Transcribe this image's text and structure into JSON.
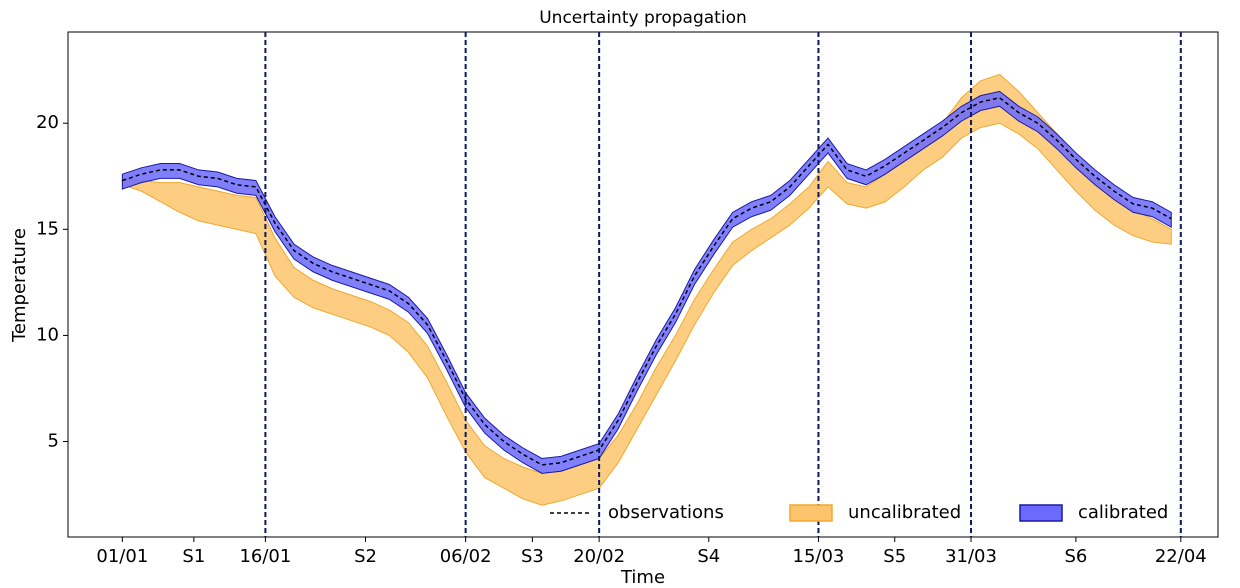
{
  "chart_data": {
    "type": "band-line",
    "title": "Uncertainty propagation",
    "xlabel": "Time",
    "ylabel": "Temperature",
    "x": [
      0,
      2,
      4,
      6,
      8,
      10,
      12,
      14,
      16,
      18,
      20,
      22,
      24,
      26,
      28,
      30,
      32,
      34,
      36,
      38,
      40,
      42,
      44,
      46,
      48,
      50,
      52,
      54,
      56,
      58,
      60,
      62,
      64,
      66,
      68,
      70,
      72,
      74,
      76,
      78,
      80,
      82,
      84,
      86,
      88,
      90,
      92,
      94,
      96,
      98,
      100,
      102,
      104,
      106,
      108,
      110
    ],
    "xlim": [
      -5.7,
      114.9
    ],
    "xticks": [
      {
        "value": 0,
        "label": "01/01"
      },
      {
        "value": 7.5,
        "label": "S1"
      },
      {
        "value": 15,
        "label": "16/01"
      },
      {
        "value": 25.5,
        "label": "S2"
      },
      {
        "value": 36,
        "label": "06/02"
      },
      {
        "value": 43,
        "label": "S3"
      },
      {
        "value": 50,
        "label": "20/02"
      },
      {
        "value": 61.5,
        "label": "S4"
      },
      {
        "value": 73,
        "label": "15/03"
      },
      {
        "value": 81,
        "label": "S5"
      },
      {
        "value": 89,
        "label": "31/03"
      },
      {
        "value": 100,
        "label": "S6"
      },
      {
        "value": 111,
        "label": "22/04"
      }
    ],
    "vlines": [
      15,
      36,
      50,
      73,
      89,
      111
    ],
    "vline_color": "#0a1a5c",
    "ylim": [
      0.5,
      24.3
    ],
    "yticks": [
      5,
      10,
      15,
      20
    ],
    "legend": "lower right",
    "bands": [
      {
        "name": "uncalibrated",
        "color": "#fdc56b",
        "edge": "#f0a830",
        "low": [
          17.1,
          16.8,
          16.3,
          15.8,
          15.4,
          15.2,
          15.0,
          14.8,
          12.8,
          11.8,
          11.3,
          11.0,
          10.7,
          10.4,
          10.0,
          9.2,
          8.0,
          6.2,
          4.5,
          3.3,
          2.8,
          2.3,
          2.0,
          2.2,
          2.5,
          2.8,
          4.0,
          5.6,
          7.2,
          8.8,
          10.5,
          12.0,
          13.3,
          14.0,
          14.6,
          15.2,
          16.0,
          17.0,
          16.2,
          16.0,
          16.3,
          17.0,
          17.8,
          18.4,
          19.3,
          19.8,
          20.0,
          19.5,
          18.8,
          17.8,
          16.8,
          15.9,
          15.2,
          14.7,
          14.4,
          14.3
        ],
        "high": [
          17.4,
          17.3,
          17.2,
          17.2,
          17.0,
          16.8,
          16.6,
          16.5,
          14.6,
          13.2,
          12.6,
          12.2,
          11.9,
          11.6,
          11.2,
          10.6,
          9.5,
          7.8,
          6.0,
          4.8,
          4.2,
          3.8,
          3.5,
          3.6,
          3.9,
          4.2,
          5.3,
          6.8,
          8.5,
          10.0,
          11.7,
          13.1,
          14.4,
          15.0,
          15.5,
          16.2,
          17.0,
          18.2,
          17.2,
          17.0,
          17.6,
          18.4,
          19.2,
          20.0,
          21.2,
          22.0,
          22.3,
          21.5,
          20.5,
          19.5,
          18.3,
          17.4,
          16.6,
          15.9,
          15.5,
          15.0
        ]
      },
      {
        "name": "calibrated",
        "color": "#6a6aff",
        "edge": "#1a1a9e",
        "low": [
          16.9,
          17.2,
          17.4,
          17.4,
          17.1,
          17.0,
          16.7,
          16.6,
          14.9,
          13.6,
          13.0,
          12.6,
          12.3,
          12.0,
          11.7,
          11.1,
          10.1,
          8.4,
          6.6,
          5.4,
          4.6,
          4.0,
          3.5,
          3.6,
          3.9,
          4.2,
          5.6,
          7.4,
          9.1,
          10.6,
          12.4,
          13.8,
          15.1,
          15.6,
          15.9,
          16.6,
          17.6,
          18.6,
          17.4,
          17.1,
          17.6,
          18.2,
          18.8,
          19.4,
          20.1,
          20.6,
          20.8,
          20.1,
          19.6,
          18.8,
          17.9,
          17.1,
          16.4,
          15.8,
          15.6,
          15.1
        ],
        "high": [
          17.6,
          17.9,
          18.1,
          18.1,
          17.8,
          17.7,
          17.4,
          17.3,
          15.6,
          14.3,
          13.7,
          13.3,
          13.0,
          12.7,
          12.4,
          11.8,
          10.8,
          9.1,
          7.3,
          6.1,
          5.3,
          4.7,
          4.2,
          4.3,
          4.6,
          4.9,
          6.3,
          8.1,
          9.8,
          11.3,
          13.1,
          14.5,
          15.8,
          16.3,
          16.6,
          17.3,
          18.3,
          19.3,
          18.1,
          17.8,
          18.3,
          18.9,
          19.5,
          20.1,
          20.8,
          21.3,
          21.5,
          20.8,
          20.3,
          19.5,
          18.6,
          17.8,
          17.1,
          16.5,
          16.3,
          15.8
        ]
      }
    ],
    "series": [
      {
        "name": "observations",
        "color": "#000000",
        "values": [
          17.3,
          17.6,
          17.8,
          17.8,
          17.5,
          17.4,
          17.1,
          17.0,
          15.3,
          14.0,
          13.4,
          13.0,
          12.7,
          12.4,
          12.1,
          11.5,
          10.5,
          8.8,
          7.0,
          5.8,
          5.0,
          4.4,
          3.9,
          4.0,
          4.3,
          4.6,
          6.0,
          7.8,
          9.5,
          11.0,
          12.8,
          14.2,
          15.5,
          16.0,
          16.3,
          17.0,
          18.0,
          19.0,
          17.8,
          17.5,
          18.0,
          18.6,
          19.2,
          19.8,
          20.5,
          21.0,
          21.2,
          20.5,
          20.0,
          19.2,
          18.3,
          17.5,
          16.8,
          16.2,
          16.0,
          15.5
        ]
      }
    ]
  }
}
